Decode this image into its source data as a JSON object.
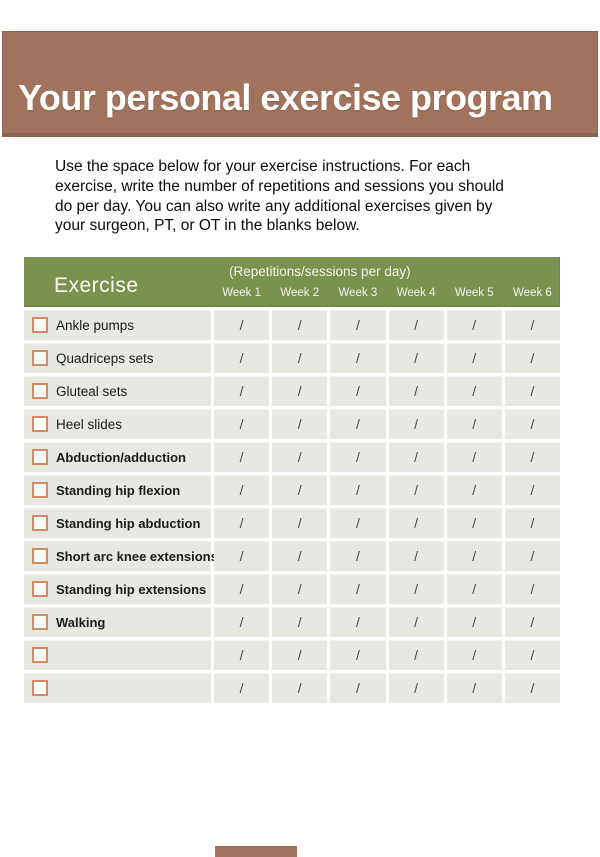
{
  "banner": {
    "title": "Your personal exercise program"
  },
  "intro": {
    "text": "Use the space below for your exercise instructions. For each exercise, write the number of repetitions and sessions you should do per day. You can also write any additional exercises given by your surgeon, PT, or OT in the blanks below."
  },
  "table": {
    "header": {
      "exercise_label": "Exercise",
      "span_label": "(Repetitions/sessions per day)",
      "week_labels": [
        "Week 1",
        "Week 2",
        "Week 3",
        "Week 4",
        "Week 5",
        "Week 6"
      ]
    },
    "cell_slash": "/",
    "rows": [
      {
        "label": "Ankle pumps",
        "checked": false
      },
      {
        "label": "Quadriceps sets",
        "checked": false
      },
      {
        "label": "Gluteal sets",
        "checked": false
      },
      {
        "label": "Heel slides",
        "checked": false
      },
      {
        "label": "Abduction/adduction",
        "checked": false
      },
      {
        "label": "Standing hip flexion",
        "checked": false
      },
      {
        "label": "Standing hip abduction",
        "checked": false
      },
      {
        "label": "Short arc knee extensions",
        "checked": false
      },
      {
        "label": "Standing hip extensions",
        "checked": false
      },
      {
        "label": "Walking",
        "checked": false
      },
      {
        "label": "",
        "checked": false
      },
      {
        "label": "",
        "checked": false
      }
    ]
  },
  "colors": {
    "banner_brown": "#a1735c",
    "banner_border": "#8d6450",
    "header_green": "#7b9150",
    "row_bg": "#e8e8e2",
    "checkbox_border": "#cf8a67",
    "slash_gray": "#4a4a4a"
  }
}
